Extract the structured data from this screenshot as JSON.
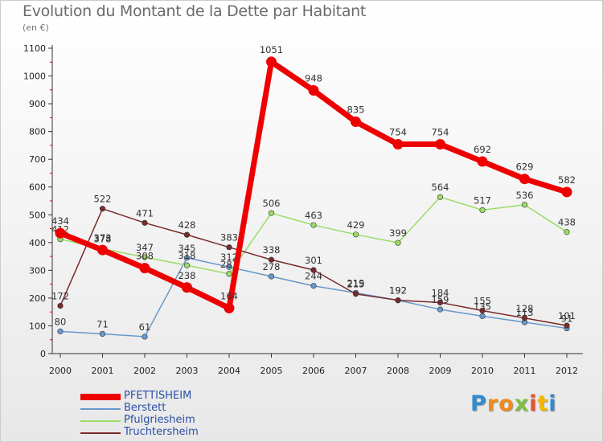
{
  "title": "Evolution du Montant de la Dette par Habitant",
  "subtitle": "(en €)",
  "chart_data": {
    "type": "line",
    "title": "Evolution du Montant de la Dette par Habitant",
    "ylabel": "(en €)",
    "xlabel": "",
    "x": [
      "2000",
      "2001",
      "2002",
      "2003",
      "2004",
      "2005",
      "2006",
      "2007",
      "2008",
      "2009",
      "2010",
      "2011",
      "2012"
    ],
    "ylim": [
      0,
      1100
    ],
    "yticks": [
      0,
      100,
      200,
      300,
      400,
      500,
      600,
      700,
      800,
      900,
      1000,
      1100
    ],
    "grid": false,
    "legend_position": "bottom-left",
    "series": [
      {
        "name": "PFETTISHEIM",
        "color": "#ee0000",
        "emphasis": true,
        "values": [
          434,
          373,
          308,
          238,
          164,
          1051,
          948,
          835,
          754,
          754,
          692,
          629,
          582
        ]
      },
      {
        "name": "Berstett",
        "color": "#6699cc",
        "emphasis": false,
        "values": [
          80,
          71,
          61,
          345,
          312,
          278,
          244,
          219,
          192,
          159,
          135,
          113,
          91
        ]
      },
      {
        "name": "Pfulgriesheim",
        "color": "#99dd66",
        "emphasis": false,
        "values": [
          412,
          378,
          347,
          318,
          287,
          506,
          463,
          429,
          399,
          564,
          517,
          536,
          438
        ]
      },
      {
        "name": "Truchtersheim",
        "color": "#7a2a2a",
        "emphasis": false,
        "values": [
          172,
          522,
          471,
          428,
          383,
          338,
          301,
          215,
          192,
          184,
          155,
          128,
          101
        ]
      }
    ]
  },
  "logo": {
    "letters": [
      "P",
      "r",
      "o",
      "x",
      "i",
      "t",
      "i"
    ],
    "colors": [
      "#2e8ccf",
      "#f08a1c",
      "#f08a1c",
      "#7fbf3f",
      "#e8502a",
      "#f5b800",
      "#2e8ccf"
    ]
  }
}
